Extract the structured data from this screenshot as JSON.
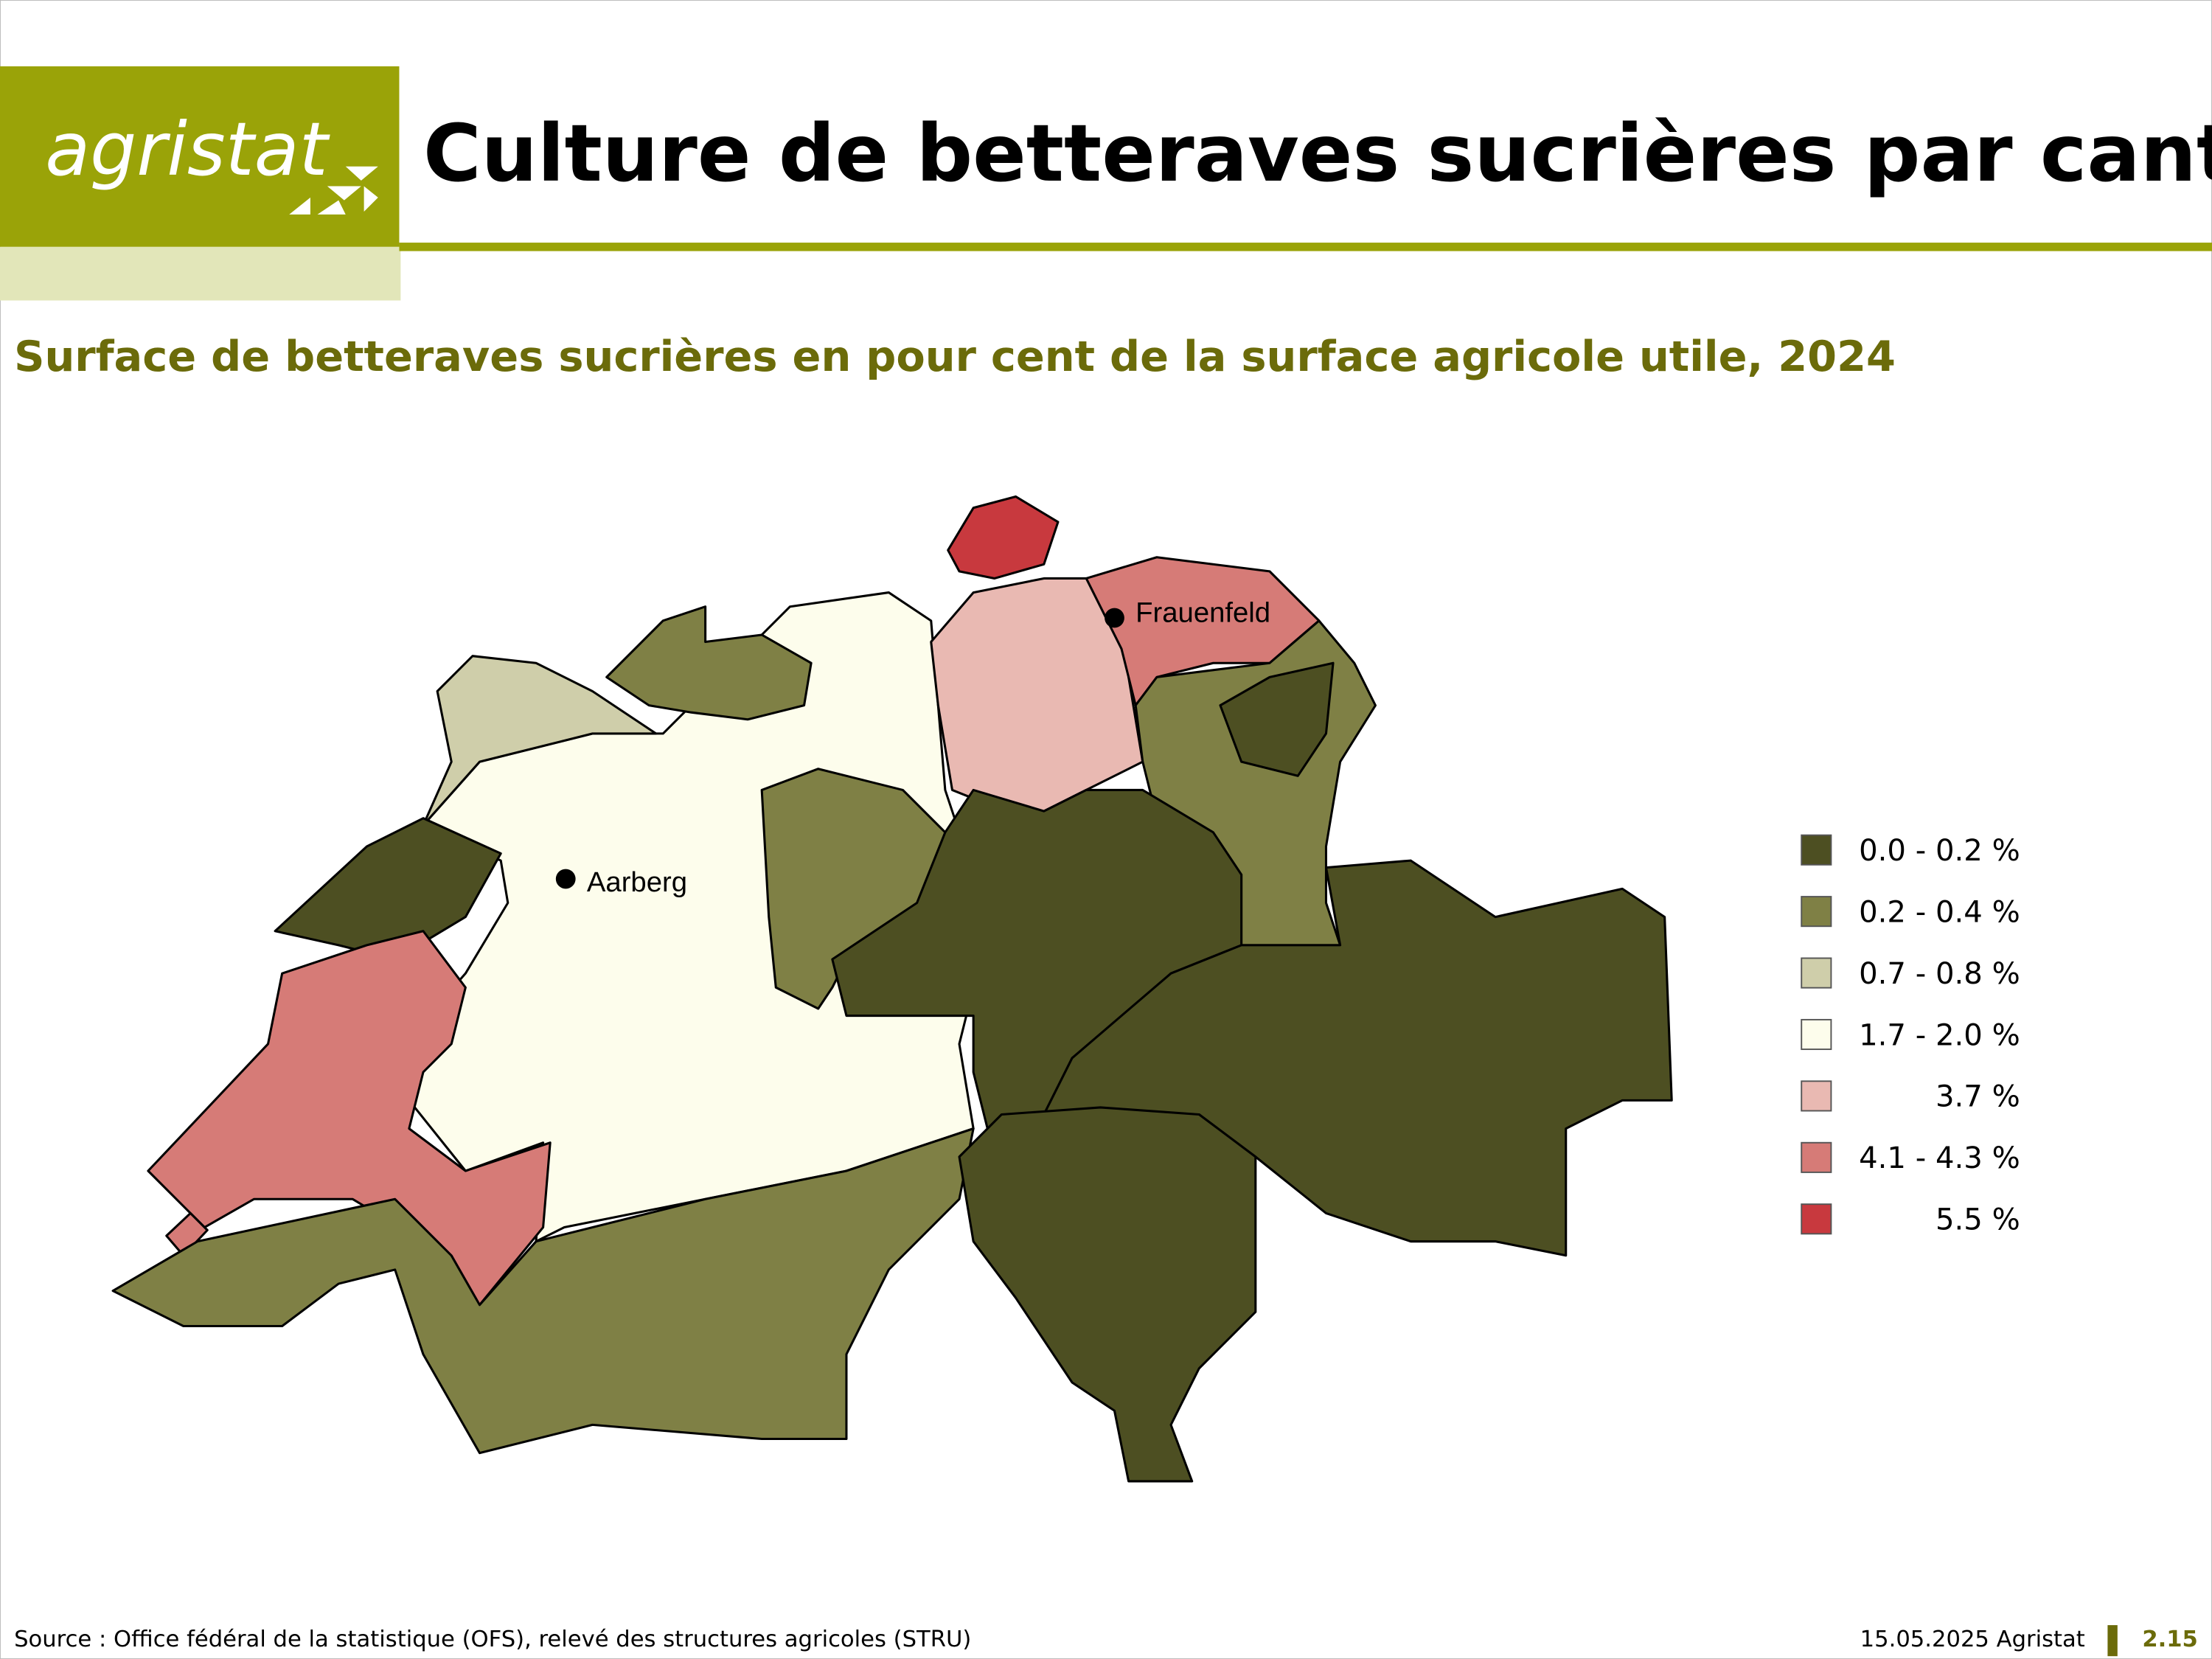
{
  "header": {
    "logo": "agristat",
    "title": "Culture de betteraves sucrières par canton"
  },
  "subtitle": "Surface de betteraves sucrières en pour cent de la surface agricole utile, 2024",
  "legend": [
    {
      "label": "0.0 - 0.2 %",
      "color": "#4d4f22"
    },
    {
      "label": "0.2 - 0.4 %",
      "color": "#7f8045"
    },
    {
      "label": "0.7 - 0.8 %",
      "color": "#cfceaa"
    },
    {
      "label": "1.7 - 2.0 %",
      "color": "#fdfdec"
    },
    {
      "label": "3.7 %",
      "color": "#e9b9b2"
    },
    {
      "label": "4.1 - 4.3 %",
      "color": "#d67b77"
    },
    {
      "label": "5.5 %",
      "color": "#c8393e"
    }
  ],
  "places": [
    {
      "name": "Aarberg"
    },
    {
      "name": "Frauenfeld"
    }
  ],
  "footer": {
    "source": "Source : Office fédéral de la statistique (OFS), relevé des structures agricoles (STRU)",
    "date": "15.05.2025 Agristat",
    "page": "2.15"
  }
}
